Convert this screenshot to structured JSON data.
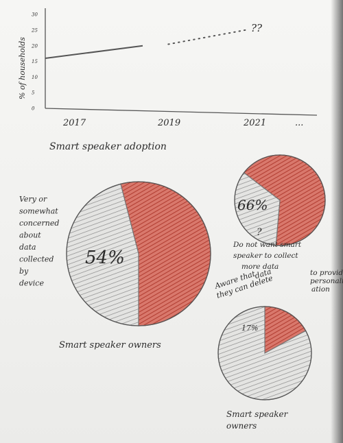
{
  "chart_data": [
    {
      "type": "line",
      "ylabel": "% of households",
      "xlabel": "Smart speaker adoption",
      "x_ticks": [
        "2017",
        "2019",
        "2021",
        "..."
      ],
      "y_ticks": [
        "0",
        "5",
        "10",
        "15",
        "20",
        "25",
        "30"
      ],
      "ylim": [
        0,
        32
      ],
      "xlim": [
        2017,
        2022.3
      ],
      "series": [
        {
          "x": [
            2017.0,
            2018.9
          ],
          "y": [
            16,
            20
          ],
          "style": "solid"
        },
        {
          "x": [
            2019.4,
            2020.9
          ],
          "y": [
            20.5,
            25
          ],
          "style": "dotted"
        }
      ],
      "annotation": "??"
    },
    {
      "type": "pie",
      "values": [
        54,
        46
      ],
      "slice_labels": [
        "54%",
        ""
      ],
      "colors": [
        "#c9584b",
        "#9a9a9a"
      ],
      "side_note": [
        "Very or",
        "somewhat",
        "concerned",
        "about",
        "data",
        "collected",
        "by",
        "device"
      ],
      "caption": "Smart speaker owners"
    },
    {
      "type": "pie",
      "values": [
        66,
        34
      ],
      "slice_labels": [
        "66%",
        ""
      ],
      "colors": [
        "#c9584b",
        "#9a9a9a"
      ],
      "mark": "?",
      "note": [
        "Do not want smart",
        "speaker to collect",
        "more data",
        "to provide",
        "personaliz-",
        "ation"
      ]
    },
    {
      "type": "pie",
      "values": [
        17,
        83
      ],
      "slice_labels": [
        "17%",
        ""
      ],
      "colors": [
        "#c9584b",
        "#9a9a9a"
      ],
      "note": [
        "Aware that",
        "they can delete",
        "data"
      ],
      "caption": [
        "Smart speaker",
        "owners"
      ]
    }
  ]
}
